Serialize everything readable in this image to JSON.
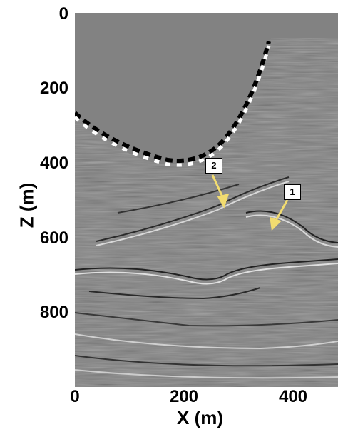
{
  "figure": {
    "y_axis_label": "Z (m)",
    "x_axis_label": "X (m)",
    "y_ticks": [
      "0",
      "200",
      "400",
      "600",
      "800"
    ],
    "x_ticks": [
      "0",
      "200",
      "400"
    ],
    "callouts": [
      "1",
      "2"
    ],
    "colors": {
      "background_gray": "#808080",
      "arrow": "#f2dc70",
      "bright": "#ffffff",
      "dark": "#000000"
    },
    "y_axis": {
      "min": 0,
      "max": 1000
    },
    "x_axis": {
      "min": 0,
      "max": 500
    }
  }
}
